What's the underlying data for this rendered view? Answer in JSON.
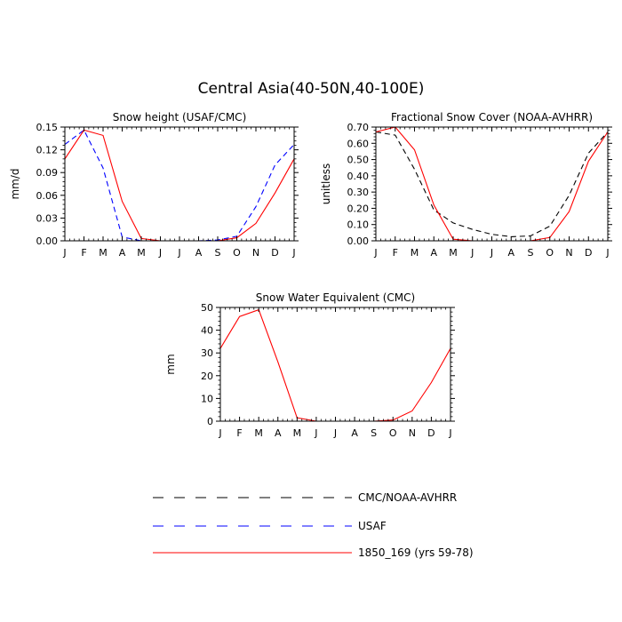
{
  "title": "Central Asia(40-50N,40-100E)",
  "legend": [
    {
      "label": "CMC/NOAA-AVHRR",
      "color": "#000000",
      "dash": "long"
    },
    {
      "label": "USAF",
      "color": "#0000ff",
      "dash": "long"
    },
    {
      "label": "1850_169 (yrs 59-78)",
      "color": "#ff0000",
      "dash": "solid"
    }
  ],
  "chart_data": [
    {
      "type": "line",
      "title": "Snow height (USAF/CMC)",
      "xlabel": "",
      "ylabel": "mm/d",
      "categories": [
        "J",
        "F",
        "M",
        "A",
        "M",
        "J",
        "J",
        "A",
        "S",
        "O",
        "N",
        "D",
        "J"
      ],
      "ylim": [
        0,
        0.15
      ],
      "yticks": [
        0.0,
        0.03,
        0.06,
        0.09,
        0.12,
        0.15
      ],
      "ytick_labels": [
        "0.00",
        "0.03",
        "0.06",
        "0.09",
        "0.12",
        "0.15"
      ],
      "series": [
        {
          "name": "USAF",
          "color": "#0000ff",
          "dash": "dash",
          "values": [
            0.127,
            0.146,
            0.096,
            0.005,
            0.0,
            0.0,
            0.0,
            0.0,
            0.001,
            0.006,
            0.045,
            0.1,
            0.127
          ]
        },
        {
          "name": "1850_169 (yrs 59-78)",
          "color": "#ff0000",
          "dash": "solid",
          "values": [
            0.108,
            0.146,
            0.139,
            0.052,
            0.003,
            0.0,
            0.0,
            0.0,
            0.0,
            0.004,
            0.023,
            0.063,
            0.108
          ]
        }
      ]
    },
    {
      "type": "line",
      "title": "Fractional Snow Cover (NOAA-AVHRR)",
      "xlabel": "",
      "ylabel": "unitless",
      "categories": [
        "J",
        "F",
        "M",
        "A",
        "M",
        "J",
        "J",
        "A",
        "S",
        "O",
        "N",
        "D",
        "J"
      ],
      "ylim": [
        0,
        0.7
      ],
      "yticks": [
        0.0,
        0.1,
        0.2,
        0.3,
        0.4,
        0.5,
        0.6,
        0.7
      ],
      "ytick_labels": [
        "0.00",
        "0.10",
        "0.20",
        "0.30",
        "0.40",
        "0.50",
        "0.60",
        "0.70"
      ],
      "series": [
        {
          "name": "CMC/NOAA-AVHRR",
          "color": "#000000",
          "dash": "dash",
          "values": [
            0.67,
            0.65,
            0.44,
            0.19,
            0.11,
            0.07,
            0.04,
            0.025,
            0.03,
            0.09,
            0.28,
            0.54,
            0.67
          ]
        },
        {
          "name": "1850_169 (yrs 59-78)",
          "color": "#ff0000",
          "dash": "solid",
          "values": [
            0.67,
            0.7,
            0.56,
            0.22,
            0.01,
            0.0,
            0.0,
            0.0,
            0.0,
            0.02,
            0.18,
            0.49,
            0.67
          ]
        }
      ]
    },
    {
      "type": "line",
      "title": "Snow Water Equivalent (CMC)",
      "xlabel": "",
      "ylabel": "mm",
      "categories": [
        "J",
        "F",
        "M",
        "A",
        "M",
        "J",
        "J",
        "A",
        "S",
        "O",
        "N",
        "D",
        "J"
      ],
      "ylim": [
        0,
        50
      ],
      "yticks": [
        0,
        10,
        20,
        30,
        40,
        50
      ],
      "ytick_labels": [
        "0",
        "10",
        "20",
        "30",
        "40",
        "50"
      ],
      "series": [
        {
          "name": "1850_169 (yrs 59-78)",
          "color": "#ff0000",
          "dash": "solid",
          "values": [
            32,
            46,
            49,
            26,
            1.5,
            0,
            0,
            0,
            0,
            0.5,
            4.5,
            17,
            32
          ]
        }
      ]
    }
  ]
}
